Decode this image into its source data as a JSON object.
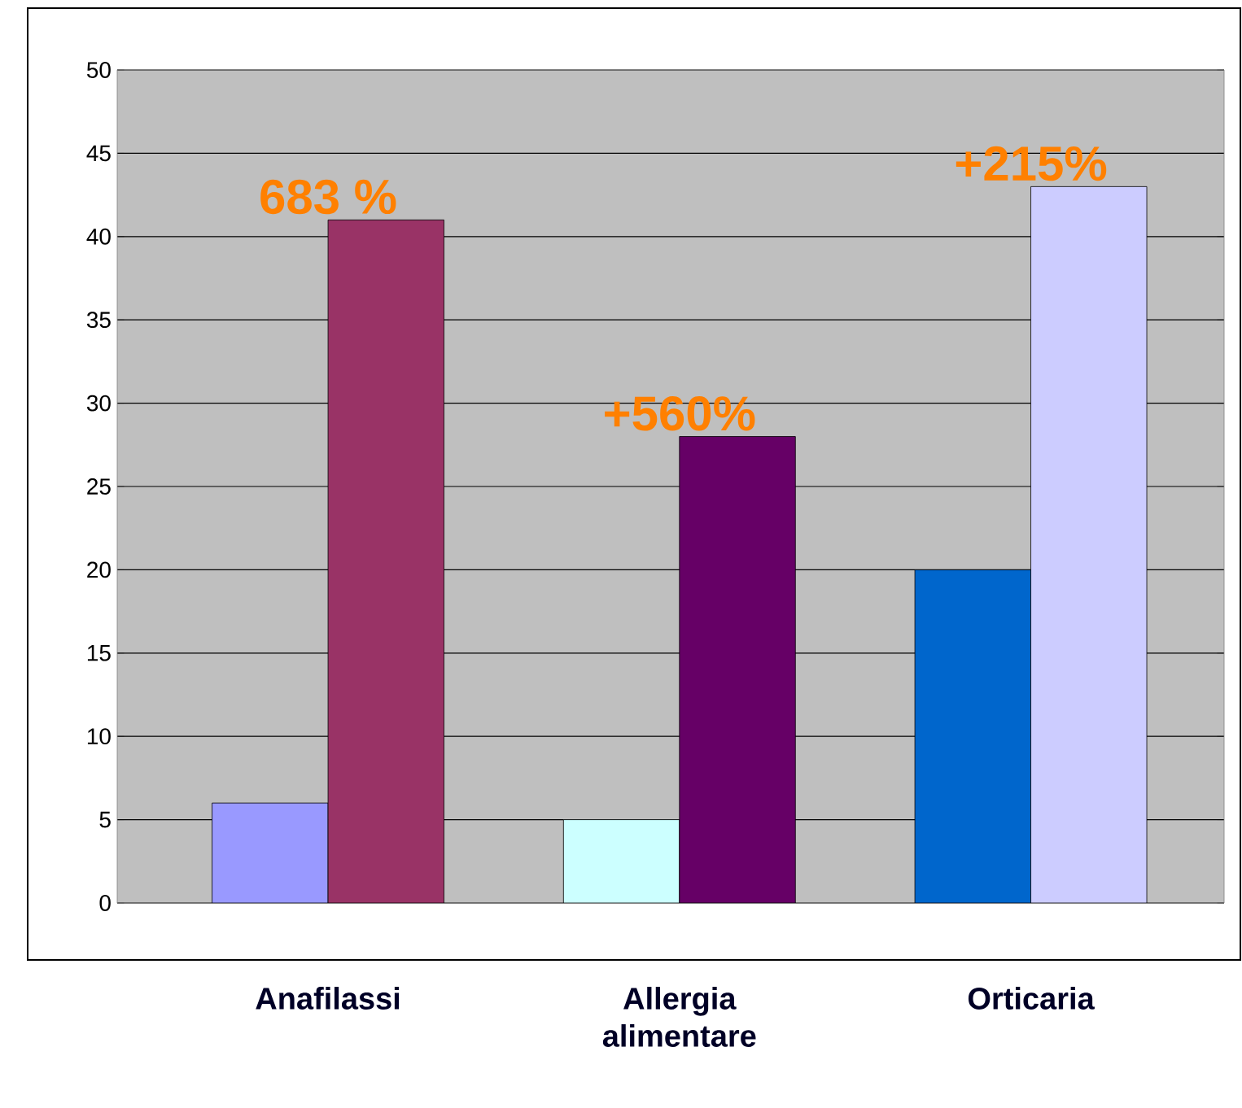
{
  "chart_data": {
    "type": "bar",
    "categories": [
      "Anafilassi",
      "Allergia alimentare",
      "Orticaria"
    ],
    "series": [
      {
        "colors": [
          "#9999ff",
          "#ccffff",
          "#0066cc"
        ],
        "values": [
          6,
          5,
          20
        ]
      },
      {
        "colors": [
          "#993366",
          "#660066",
          "#ccccff"
        ],
        "values": [
          41,
          28,
          43
        ]
      }
    ],
    "ylim": [
      0,
      50
    ],
    "yticks": [
      0,
      5,
      10,
      15,
      20,
      25,
      30,
      35,
      40,
      45,
      50
    ],
    "grid": "y",
    "annotations": [
      "683 %",
      "+560%",
      "+215%"
    ]
  }
}
